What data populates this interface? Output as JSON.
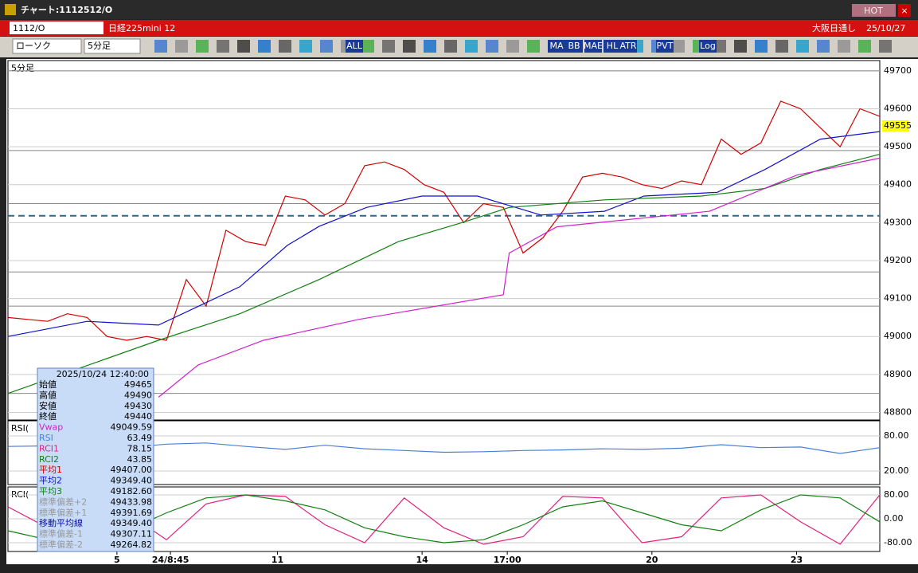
{
  "window": {
    "title": "チャート:1112512/O",
    "hot": "HOT",
    "close": "×"
  },
  "header": {
    "code": "1112/O",
    "name": "日経225mini 12",
    "market": "大阪日通し",
    "date": "25/10/27"
  },
  "toolbar": {
    "chart_type": "ローソク",
    "period": "5分足",
    "buttons": [
      "ALL",
      "MA",
      "BB",
      "MAE",
      "HL",
      "ATR",
      "PVT",
      "Log"
    ]
  },
  "price_panel": {
    "label": "5分足",
    "ylim": [
      48780,
      49727
    ],
    "xlim": [
      0,
      44
    ],
    "yticks": [
      48800,
      48900,
      49000,
      49100,
      49200,
      49300,
      49400,
      49500,
      49600,
      49700
    ],
    "gridlines": [
      48850,
      49080,
      49170,
      49350,
      49490,
      49700
    ],
    "reference_line": 49318,
    "last_price": 49555,
    "series": [
      {
        "color": "#d00000",
        "x": [
          0,
          1,
          2,
          3,
          4,
          5,
          6,
          7,
          8,
          9,
          10,
          11,
          12,
          13,
          14,
          15,
          16,
          17,
          18,
          19,
          20,
          21,
          22,
          23,
          24,
          25,
          26,
          27,
          28,
          29,
          30,
          31,
          32,
          33,
          34,
          35,
          36,
          37,
          38,
          39,
          40,
          41,
          42,
          43,
          44
        ],
        "values": [
          49050,
          49045,
          49040,
          49060,
          49050,
          49000,
          48990,
          49000,
          48990,
          49150,
          49080,
          49280,
          49250,
          49240,
          49370,
          49360,
          49320,
          49350,
          49450,
          49460,
          49440,
          49400,
          49380,
          49300,
          49350,
          49340,
          49220,
          49260,
          49330,
          49420,
          49430,
          49420,
          49400,
          49390,
          49410,
          49400,
          49520,
          49480,
          49510,
          49620,
          49600,
          49550,
          49500,
          49600,
          49580
        ]
      },
      {
        "color": "#1010d0",
        "x": [
          0,
          4,
          7.6,
          11.7,
          14.1,
          15.7,
          18.1,
          20.9,
          23.7,
          26.9,
          30.1,
          32.1,
          35.8,
          38.2,
          41,
          44
        ],
        "values": [
          49000,
          49040,
          49030,
          49131,
          49240,
          49290,
          49340,
          49370,
          49370,
          49320,
          49330,
          49370,
          49380,
          49440,
          49520,
          49540
        ]
      },
      {
        "color": "#108010",
        "x": [
          0,
          7.6,
          11.7,
          15.7,
          19.7,
          22.9,
          25.3,
          30.1,
          35,
          38.2,
          41,
          44
        ],
        "values": [
          48850,
          48990,
          49060,
          49150,
          49250,
          49300,
          49340,
          49360,
          49370,
          49390,
          49440,
          49480
        ]
      },
      {
        "color": "#d020d0",
        "x": [
          7.6,
          9.6,
          12.9,
          17.7,
          25,
          25.3,
          27.7,
          35.4,
          39.8,
          44
        ],
        "values": [
          48840,
          48925,
          48990,
          49045,
          49110,
          49220,
          49289,
          49330,
          49425,
          49470
        ]
      }
    ]
  },
  "rsi_panel": {
    "label": "RSI(",
    "ylim": [
      -3.2,
      105.9
    ],
    "yticks": [
      {
        "value": 80,
        "label": "80.00"
      },
      {
        "value": 20,
        "label": "20.00"
      }
    ],
    "x": [
      0,
      2,
      4,
      6,
      8,
      10,
      12,
      14,
      16,
      18,
      20,
      22,
      24,
      26,
      28,
      30,
      32,
      34,
      36,
      38,
      40,
      42,
      44
    ],
    "series": [
      {
        "color": "#4a7fd8",
        "values": [
          62,
          63,
          58,
          60,
          66,
          68,
          62,
          57,
          64,
          58,
          55,
          52,
          53,
          55,
          56,
          58,
          57,
          59,
          65,
          60,
          61,
          50,
          60
        ]
      }
    ]
  },
  "rci_panel": {
    "label": "RCI(",
    "ylim": [
      -109.3,
      106.7
    ],
    "yticks": [
      {
        "value": 80,
        "label": "80.00"
      },
      {
        "value": 0,
        "label": "0.00"
      },
      {
        "value": -80,
        "label": "-80.00"
      }
    ],
    "x": [
      0,
      2,
      4,
      6,
      8,
      10,
      12,
      14,
      16,
      18,
      20,
      22,
      24,
      26,
      28,
      30,
      32,
      34,
      36,
      38,
      40,
      42,
      44
    ],
    "series": [
      {
        "color": "#e0207a",
        "values": [
          40,
          -30,
          60,
          20,
          -70,
          50,
          80,
          75,
          -20,
          -80,
          70,
          -30,
          -85,
          -60,
          75,
          70,
          -80,
          -60,
          70,
          80,
          -10,
          -85,
          80
        ]
      },
      {
        "color": "#108010",
        "values": [
          -40,
          -70,
          -80,
          -40,
          20,
          70,
          80,
          60,
          30,
          -30,
          -60,
          -80,
          -70,
          -20,
          40,
          60,
          20,
          -20,
          -40,
          30,
          80,
          70,
          -10
        ]
      }
    ]
  },
  "xticks": [
    {
      "value": 5.5,
      "label": "5"
    },
    {
      "value": 8.2,
      "label": "24/8:45"
    },
    {
      "value": 13.6,
      "label": "11"
    },
    {
      "value": 20.9,
      "label": "14"
    },
    {
      "value": 25.2,
      "label": "17:00"
    },
    {
      "value": 32.5,
      "label": "20"
    },
    {
      "value": 39.8,
      "label": "23"
    }
  ],
  "info_box": {
    "time": "2025/10/24 12:40:00",
    "rows": [
      {
        "label": "始値",
        "value": "49465",
        "color": "#000"
      },
      {
        "label": "高値",
        "value": "49490",
        "color": "#000"
      },
      {
        "label": "安値",
        "value": "49430",
        "color": "#000"
      },
      {
        "label": "終値",
        "value": "49440",
        "color": "#000"
      },
      {
        "label": "Vwap",
        "value": "49049.59",
        "color": "#d020d0"
      },
      {
        "label": "RSI",
        "value": "63.49",
        "color": "#4a7fd8"
      },
      {
        "label": "RCI1",
        "value": "78.15",
        "color": "#e0207a"
      },
      {
        "label": "RCI2",
        "value": "43.85",
        "color": "#108010"
      },
      {
        "label": "平均1",
        "value": "49407.00",
        "color": "#d00000"
      },
      {
        "label": "平均2",
        "value": "49349.40",
        "color": "#1010d0"
      },
      {
        "label": "平均3",
        "value": "49182.60",
        "color": "#108010"
      },
      {
        "label": "標準偏差+2",
        "value": "49433.98",
        "color": "#999"
      },
      {
        "label": "標準偏差+1",
        "value": "49391.69",
        "color": "#999"
      },
      {
        "label": "移動平均線",
        "value": "49349.40",
        "color": "#1010a0"
      },
      {
        "label": "標準偏差-1",
        "value": "49307.11",
        "color": "#999"
      },
      {
        "label": "標準偏差-2",
        "value": "49264.82",
        "color": "#999"
      }
    ]
  }
}
